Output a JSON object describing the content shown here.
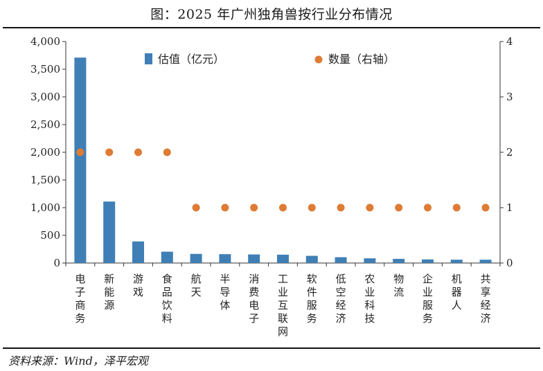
{
  "chart_data": {
    "type": "bar",
    "title": "图：2025 年广州独角兽按行业分布情况",
    "categories": [
      "电子商务",
      "新能源",
      "游戏",
      "食品饮料",
      "航天",
      "半导体",
      "消费电子",
      "工业互联网",
      "软件服务",
      "低空经济",
      "农业科技",
      "物流",
      "企业服务",
      "机器人",
      "共享经济"
    ],
    "series": [
      {
        "name": "估值（亿元）",
        "type": "bar",
        "axis": "left",
        "values": [
          3710,
          1110,
          390,
          205,
          165,
          160,
          155,
          150,
          130,
          105,
          85,
          75,
          65,
          60,
          60
        ],
        "color": "#3f7fb5"
      },
      {
        "name": "数量（右轴）",
        "type": "scatter",
        "axis": "right",
        "values": [
          2,
          2,
          2,
          2,
          1,
          1,
          1,
          1,
          1,
          1,
          1,
          1,
          1,
          1,
          1
        ],
        "color": "#de7b35"
      }
    ],
    "y_left": {
      "ylim": [
        0,
        4000
      ],
      "ticks": [
        0,
        500,
        1000,
        1500,
        2000,
        2500,
        3000,
        3500,
        4000
      ],
      "tick_labels": [
        "0",
        "500",
        "1,000",
        "1,500",
        "2,000",
        "2,500",
        "3,000",
        "3,500",
        "4,000"
      ]
    },
    "y_right": {
      "ylim": [
        0,
        4
      ],
      "ticks": [
        0,
        1,
        2,
        3,
        4
      ],
      "tick_labels": [
        "0",
        "1",
        "2",
        "3",
        "4"
      ]
    },
    "legend_placement": "top",
    "grid": false
  },
  "source_note": "资料来源：Wind，泽平宏观"
}
